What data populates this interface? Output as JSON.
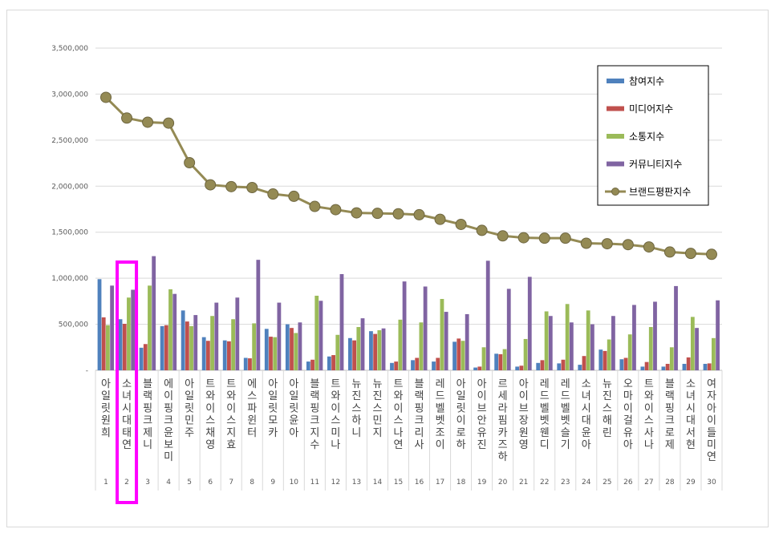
{
  "chart_data": {
    "type": "bar",
    "title": "",
    "xlabel": "",
    "ylabel": "",
    "ylim": [
      0,
      3500000
    ],
    "yticks": [
      "-",
      "500,000",
      "1,000,000",
      "1,500,000",
      "2,000,000",
      "2,500,000",
      "3,000,000",
      "3,500,000"
    ],
    "grid": true,
    "legend_position": "top-right",
    "highlight_rank": 2,
    "highlight_color": "#ff00ff",
    "ranks": [
      "1",
      "2",
      "3",
      "4",
      "5",
      "6",
      "7",
      "8",
      "9",
      "10",
      "11",
      "12",
      "13",
      "14",
      "15",
      "16",
      "17",
      "18",
      "19",
      "20",
      "21",
      "22",
      "23",
      "24",
      "25",
      "26",
      "27",
      "28",
      "29",
      "30"
    ],
    "categories": [
      "아일릿원희",
      "소녀시대태연",
      "블랙핑크제니",
      "에이핑크윤보미",
      "아일릿민주",
      "트와이스채영",
      "트와이스지효",
      "에스파윈터",
      "아일릿모카",
      "아일릿윤아",
      "블랙핑크지수",
      "트와이스미나",
      "뉴진스하니",
      "뉴진스민지",
      "트와이스나연",
      "블랙핑크리사",
      "레드벨벳조이",
      "아일릿이로하",
      "아이브안유진",
      "르세라핌카즈하",
      "아이브장원영",
      "레드벨벳웬디",
      "레드벨벳슬기",
      "소녀시대윤아",
      "뉴진스해린",
      "오마이걸유아",
      "트와이스사나",
      "블랙핑크로제",
      "소녀시대서현",
      "여자아이들미연"
    ],
    "series": [
      {
        "name": "참여지수",
        "color": "#4f81bd",
        "values": [
          990000,
          555000,
          245000,
          480000,
          650000,
          360000,
          325000,
          135000,
          450000,
          500000,
          95000,
          150000,
          350000,
          425000,
          80000,
          110000,
          95000,
          310000,
          30000,
          180000,
          40000,
          80000,
          75000,
          60000,
          225000,
          120000,
          40000,
          40000,
          70000,
          70000
        ]
      },
      {
        "name": "미디어지수",
        "color": "#c0504d",
        "values": [
          575000,
          505000,
          285000,
          490000,
          530000,
          320000,
          315000,
          130000,
          365000,
          460000,
          115000,
          165000,
          325000,
          395000,
          95000,
          135000,
          135000,
          345000,
          40000,
          175000,
          50000,
          110000,
          115000,
          155000,
          210000,
          135000,
          90000,
          70000,
          140000,
          75000
        ]
      },
      {
        "name": "소통지수",
        "color": "#9bbb59",
        "values": [
          490000,
          790000,
          920000,
          880000,
          480000,
          590000,
          555000,
          510000,
          360000,
          405000,
          810000,
          385000,
          470000,
          435000,
          550000,
          520000,
          775000,
          320000,
          250000,
          230000,
          340000,
          640000,
          720000,
          650000,
          335000,
          390000,
          470000,
          250000,
          580000,
          350000
        ]
      },
      {
        "name": "커뮤니티지수",
        "color": "#8064a2",
        "values": [
          920000,
          875000,
          1240000,
          830000,
          600000,
          735000,
          790000,
          1200000,
          735000,
          520000,
          755000,
          1045000,
          565000,
          455000,
          965000,
          910000,
          635000,
          610000,
          1190000,
          885000,
          1015000,
          590000,
          520000,
          500000,
          590000,
          710000,
          745000,
          915000,
          460000,
          760000
        ]
      },
      {
        "name": "브랜드평판지수",
        "color": "#948a54",
        "values": [
          2965000,
          2740000,
          2695000,
          2685000,
          2255000,
          2015000,
          1995000,
          1985000,
          1915000,
          1890000,
          1780000,
          1745000,
          1710000,
          1705000,
          1700000,
          1690000,
          1640000,
          1585000,
          1520000,
          1460000,
          1440000,
          1435000,
          1435000,
          1380000,
          1375000,
          1365000,
          1340000,
          1285000,
          1270000,
          1260000
        ]
      }
    ]
  }
}
